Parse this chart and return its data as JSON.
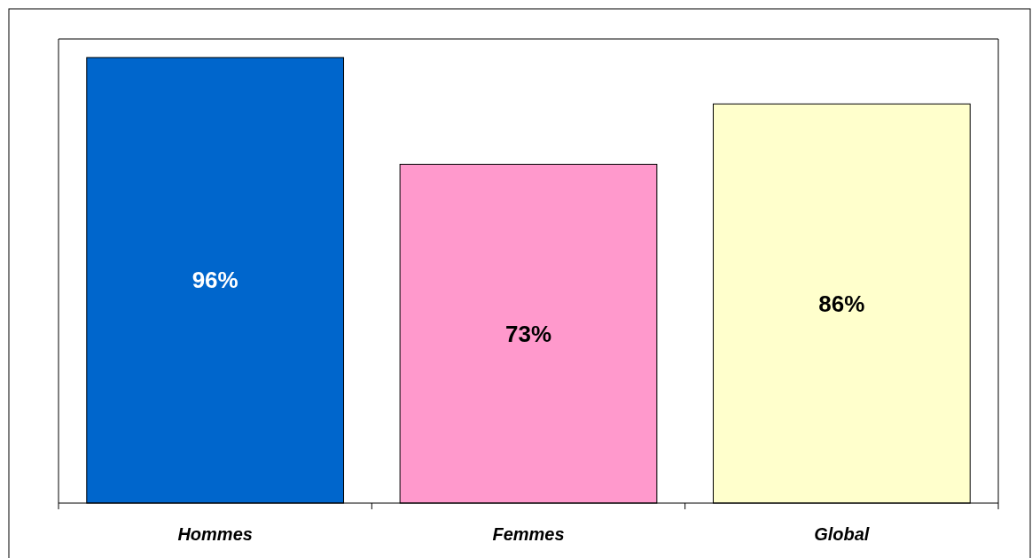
{
  "chart_data": {
    "type": "bar",
    "categories": [
      "Hommes",
      "Femmes",
      "Global"
    ],
    "values": [
      96,
      73,
      86
    ],
    "colors": [
      "#0066cc",
      "#ff99cc",
      "#ffffcc"
    ],
    "value_labels": [
      "96%",
      "73%",
      "86%"
    ],
    "ylim": [
      0,
      100
    ]
  }
}
